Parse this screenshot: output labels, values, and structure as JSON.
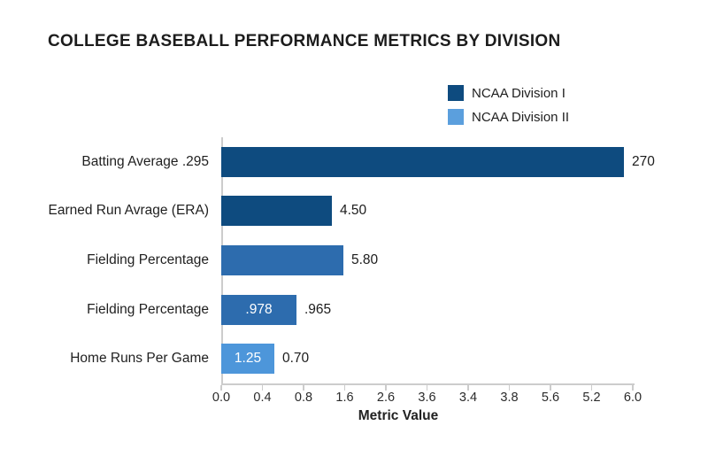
{
  "title": "COLLEGE BASEBALL PERFORMANCE METRICS BY DIVISION",
  "legend": {
    "items": [
      {
        "label": "NCAA Division I",
        "color": "#0e4b7f"
      },
      {
        "label": "NCAA Division II",
        "color": "#5b9fdd"
      }
    ]
  },
  "chart_data": {
    "type": "bar",
    "orientation": "horizontal",
    "title": "COLLEGE BASEBALL PERFORMANCE METRICS BY DIVISION",
    "xlabel": "Metric Value",
    "x_tick_labels": [
      "0.0",
      "0.4",
      "0.8",
      "1.6",
      "2.6",
      "3.6",
      "3.4",
      "3.8",
      "5.6",
      "5.2",
      "6.0"
    ],
    "axis_span_units": 6.0,
    "grid": false,
    "legend_position": "top-right",
    "legend_entries": [
      "NCAA Division I",
      "NCAA Division II"
    ],
    "bars": [
      {
        "category": "Batting Average .295",
        "value_label": "270",
        "inside_label": "",
        "plotted_extent_units": 5.87,
        "color": "#0e4b7f"
      },
      {
        "category": "Earned Run Avrage (ERA)",
        "value_label": "4.50",
        "inside_label": "",
        "plotted_extent_units": 1.61,
        "color": "#0e4b7f"
      },
      {
        "category": "Fielding Percentage",
        "value_label": "5.80",
        "inside_label": "",
        "plotted_extent_units": 1.78,
        "color": "#2d6cae"
      },
      {
        "category": "Fielding Percentage",
        "value_label": ".965",
        "inside_label": ".978",
        "plotted_extent_units": 1.1,
        "color": "#2d6cae"
      },
      {
        "category": "Home Runs Per Game",
        "value_label": "0.70",
        "inside_label": "1.25",
        "plotted_extent_units": 0.77,
        "color": "#4d96da"
      }
    ]
  }
}
